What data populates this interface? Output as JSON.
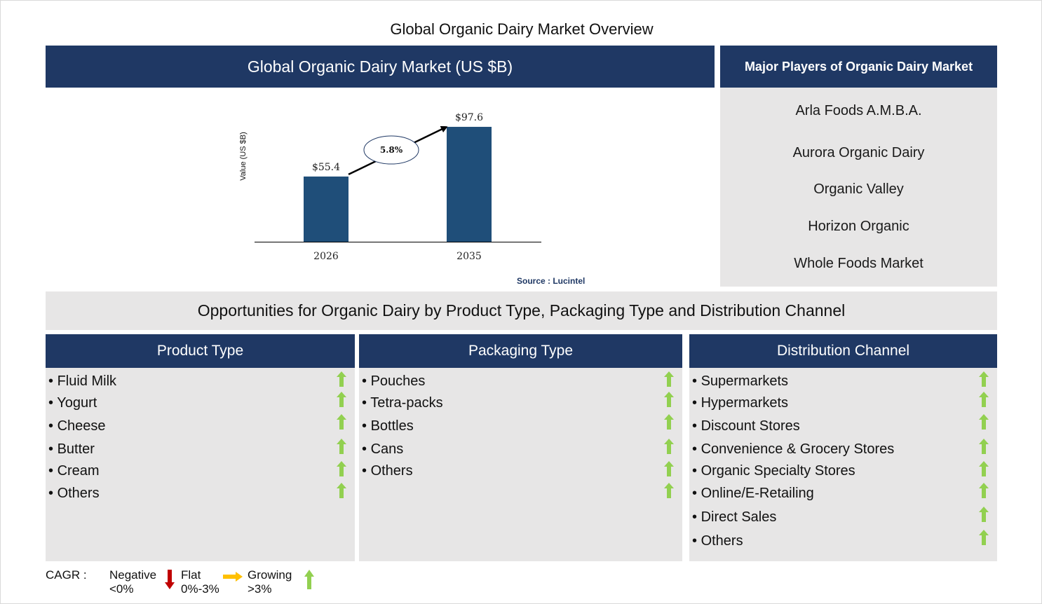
{
  "page_title": "Global Organic Dairy Market Overview",
  "chart_header": "Global Organic Dairy Market (US $B)",
  "players": {
    "header": "Major Players of Organic Dairy Market",
    "items": [
      "Arla Foods A.M.B.A.",
      "Aurora Organic Dairy",
      "Organic Valley",
      "Horizon Organic",
      "Whole Foods Market"
    ]
  },
  "chart_data": {
    "type": "bar",
    "categories": [
      "2026",
      "2035"
    ],
    "values": [
      55.4,
      97.6
    ],
    "value_labels": [
      "$55.4",
      "$97.6"
    ],
    "title": "Global Organic Dairy Market (US $B)",
    "xlabel": "",
    "ylabel": "Value (US $B)",
    "ylim": [
      0,
      100
    ],
    "cagr_label": "5.8%",
    "bar_color": "#1f4e79",
    "grid": false
  },
  "source": "Source : Lucintel",
  "opportunities_title": "Opportunities for Organic Dairy by Product Type, Packaging Type and Distribution Channel",
  "columns": [
    {
      "header": "Product Type",
      "items": [
        "Fluid Milk",
        "Yogurt",
        "Cheese",
        "Butter",
        "Cream",
        "Others"
      ],
      "trend": "growing"
    },
    {
      "header": "Packaging Type",
      "items": [
        "Pouches",
        "Tetra-packs",
        "Bottles",
        "Cans",
        "Others"
      ],
      "trend": "growing"
    },
    {
      "header": "Distribution Channel",
      "items": [
        "Supermarkets",
        "Hypermarkets",
        "Discount Stores",
        "Convenience & Grocery Stores",
        "Organic Specialty Stores",
        "Online/E-Retailing",
        "Direct Sales",
        "Others"
      ],
      "trend": "growing"
    }
  ],
  "legend": {
    "title": "CAGR :",
    "negative": {
      "label": "Negative",
      "range": "<0%",
      "icon": "down-arrow-icon",
      "color": "#c00000"
    },
    "flat": {
      "label": "Flat",
      "range": "0%-3%",
      "icon": "right-arrow-icon",
      "color": "#ffc000"
    },
    "growing": {
      "label": "Growing",
      "range": ">3%",
      "icon": "up-arrow-icon",
      "color": "#92d050"
    }
  },
  "colors": {
    "navy": "#1f3864",
    "panel_grey": "#e7e6e6",
    "bar": "#1f4e79",
    "growth": "#92d050"
  }
}
